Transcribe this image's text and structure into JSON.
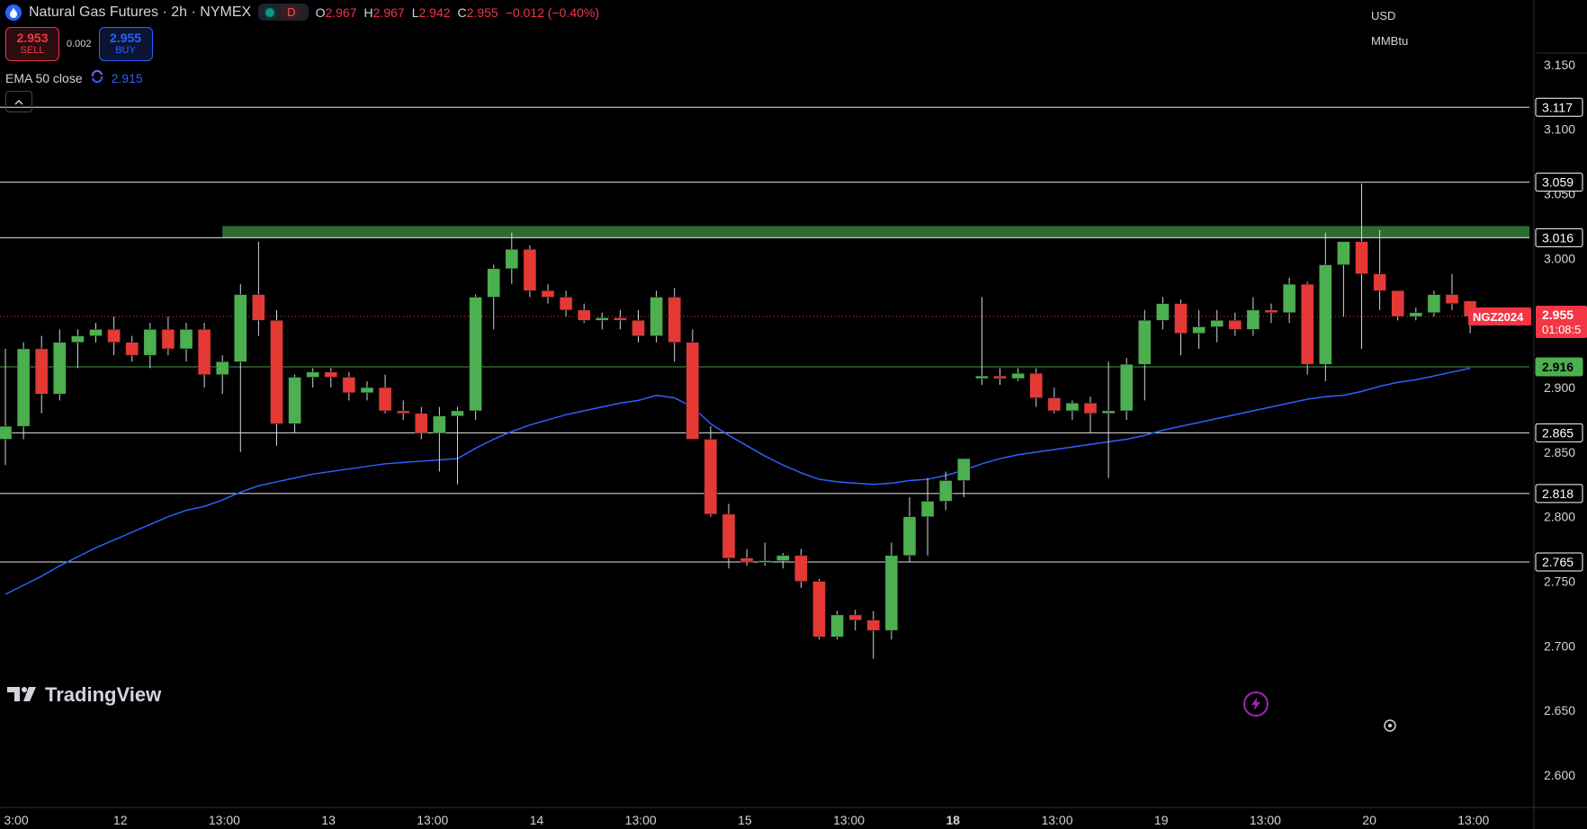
{
  "header": {
    "title": "Natural Gas Futures · 2h · NYMEX",
    "market_status_badge": "D",
    "ohlc": {
      "open_label": "O",
      "open": "2.967",
      "high_label": "H",
      "high": "2.967",
      "low_label": "L",
      "low": "2.942",
      "close_label": "C",
      "close": "2.955",
      "change": "−0.012 (−0.40%)"
    }
  },
  "trade": {
    "sell_price": "2.953",
    "sell_label": "SELL",
    "spread": "0.002",
    "buy_price": "2.955",
    "buy_label": "BUY"
  },
  "indicator": {
    "name": "EMA 50 close",
    "value": "2.915"
  },
  "axis": {
    "currency": "USD",
    "unit": "MMBtu"
  },
  "branding": {
    "logo": "TradingView"
  },
  "colors": {
    "up": "#4caf50",
    "down": "#e53935",
    "ema": "#2962ff",
    "resistance_zone": "#2e6b34",
    "price_line": "#f23645",
    "background": "#000000"
  },
  "chart_data": {
    "type": "candlestick",
    "symbol": "NGZ2024",
    "interval": "2h",
    "ylim": [
      2.575,
      3.2
    ],
    "y_ticks": [
      2.6,
      2.65,
      2.7,
      2.75,
      2.8,
      2.85,
      2.9,
      3.0,
      3.05,
      3.1,
      3.15
    ],
    "x_ticks": [
      "3:00",
      "12",
      "13:00",
      "13",
      "13:00",
      "14",
      "13:00",
      "15",
      "13:00",
      "18",
      "13:00",
      "19",
      "13:00",
      "20",
      "13:00"
    ],
    "x_ticks_bold": [
      9
    ],
    "horizontal_levels": [
      {
        "value": 3.117,
        "label": "3.117",
        "color": "#ffffff"
      },
      {
        "value": 3.059,
        "label": "3.059",
        "color": "#ffffff"
      },
      {
        "value": 3.016,
        "label": "3.016",
        "color": "#ffffff"
      },
      {
        "value": 2.865,
        "label": "2.865",
        "color": "#ffffff"
      },
      {
        "value": 2.818,
        "label": "2.818",
        "color": "#ffffff"
      },
      {
        "value": 2.765,
        "label": "2.765",
        "color": "#ffffff"
      },
      {
        "value": 2.916,
        "label": "2.916",
        "color": "#4caf50"
      }
    ],
    "resistance_zone": [
      3.016,
      3.025
    ],
    "last_price": {
      "value": 2.955,
      "label": "2.955",
      "countdown": "01:08:5",
      "symbol_label": "NGZ2024"
    },
    "candles": [
      [
        2.86,
        2.93,
        2.84,
        2.87
      ],
      [
        2.87,
        2.935,
        2.86,
        2.93
      ],
      [
        2.93,
        2.94,
        2.88,
        2.895
      ],
      [
        2.895,
        2.945,
        2.89,
        2.935
      ],
      [
        2.935,
        2.945,
        2.915,
        2.94
      ],
      [
        2.94,
        2.95,
        2.935,
        2.945
      ],
      [
        2.945,
        2.955,
        2.925,
        2.935
      ],
      [
        2.935,
        2.94,
        2.92,
        2.925
      ],
      [
        2.925,
        2.95,
        2.915,
        2.945
      ],
      [
        2.945,
        2.955,
        2.925,
        2.93
      ],
      [
        2.93,
        2.95,
        2.92,
        2.945
      ],
      [
        2.945,
        2.95,
        2.9,
        2.91
      ],
      [
        2.91,
        2.925,
        2.895,
        2.92
      ],
      [
        2.92,
        2.98,
        2.85,
        2.972
      ],
      [
        2.972,
        3.013,
        2.94,
        2.952
      ],
      [
        2.952,
        2.96,
        2.855,
        2.872
      ],
      [
        2.872,
        2.91,
        2.865,
        2.908
      ],
      [
        2.908,
        2.915,
        2.9,
        2.912
      ],
      [
        2.912,
        2.915,
        2.9,
        2.908
      ],
      [
        2.908,
        2.912,
        2.89,
        2.896
      ],
      [
        2.896,
        2.905,
        2.89,
        2.9
      ],
      [
        2.9,
        2.91,
        2.88,
        2.882
      ],
      [
        2.882,
        2.89,
        2.875,
        2.88
      ],
      [
        2.88,
        2.885,
        2.86,
        2.865
      ],
      [
        2.865,
        2.885,
        2.835,
        2.878
      ],
      [
        2.878,
        2.885,
        2.825,
        2.882
      ],
      [
        2.882,
        2.972,
        2.875,
        2.97
      ],
      [
        2.97,
        2.995,
        2.945,
        2.992
      ],
      [
        2.992,
        3.02,
        2.98,
        3.007
      ],
      [
        3.007,
        3.01,
        2.97,
        2.975
      ],
      [
        2.975,
        2.98,
        2.965,
        2.97
      ],
      [
        2.97,
        2.975,
        2.955,
        2.96
      ],
      [
        2.96,
        2.965,
        2.95,
        2.952
      ],
      [
        2.952,
        2.958,
        2.945,
        2.954
      ],
      [
        2.954,
        2.96,
        2.945,
        2.952
      ],
      [
        2.952,
        2.96,
        2.935,
        2.94
      ],
      [
        2.94,
        2.975,
        2.935,
        2.97
      ],
      [
        2.97,
        2.977,
        2.92,
        2.935
      ],
      [
        2.935,
        2.945,
        2.86,
        2.86
      ],
      [
        2.86,
        2.87,
        2.8,
        2.802
      ],
      [
        2.802,
        2.81,
        2.76,
        2.768
      ],
      [
        2.768,
        2.775,
        2.762,
        2.765
      ],
      [
        2.765,
        2.78,
        2.762,
        2.766
      ],
      [
        2.766,
        2.772,
        2.76,
        2.77
      ],
      [
        2.77,
        2.775,
        2.745,
        2.75
      ],
      [
        2.75,
        2.752,
        2.705,
        2.707
      ],
      [
        2.707,
        2.727,
        2.705,
        2.724
      ],
      [
        2.724,
        2.728,
        2.712,
        2.72
      ],
      [
        2.72,
        2.727,
        2.69,
        2.712
      ],
      [
        2.712,
        2.78,
        2.705,
        2.77
      ],
      [
        2.77,
        2.815,
        2.765,
        2.8
      ],
      [
        2.8,
        2.83,
        2.77,
        2.812
      ],
      [
        2.812,
        2.835,
        2.805,
        2.828
      ],
      [
        2.828,
        2.84,
        2.815,
        2.845
      ],
      [
        2.907,
        2.97,
        2.902,
        2.909
      ],
      [
        2.909,
        2.915,
        2.902,
        2.907
      ],
      [
        2.907,
        2.915,
        2.905,
        2.911
      ],
      [
        2.911,
        2.915,
        2.885,
        2.892
      ],
      [
        2.892,
        2.9,
        2.88,
        2.882
      ],
      [
        2.882,
        2.89,
        2.875,
        2.888
      ],
      [
        2.888,
        2.893,
        2.865,
        2.88
      ],
      [
        2.88,
        2.92,
        2.83,
        2.882
      ],
      [
        2.882,
        2.923,
        2.875,
        2.918
      ],
      [
        2.918,
        2.96,
        2.89,
        2.952
      ],
      [
        2.952,
        2.97,
        2.945,
        2.965
      ],
      [
        2.965,
        2.968,
        2.925,
        2.942
      ],
      [
        2.942,
        2.96,
        2.93,
        2.947
      ],
      [
        2.947,
        2.96,
        2.935,
        2.952
      ],
      [
        2.952,
        2.958,
        2.94,
        2.945
      ],
      [
        2.945,
        2.97,
        2.94,
        2.96
      ],
      [
        2.96,
        2.965,
        2.95,
        2.958
      ],
      [
        2.958,
        2.985,
        2.95,
        2.98
      ],
      [
        2.98,
        2.982,
        2.91,
        2.918
      ],
      [
        2.918,
        3.02,
        2.905,
        2.995
      ],
      [
        2.995,
        3.012,
        2.955,
        3.013
      ],
      [
        3.013,
        3.058,
        2.93,
        2.988
      ],
      [
        2.988,
        3.022,
        2.96,
        2.975
      ],
      [
        2.975,
        2.975,
        2.952,
        2.955
      ],
      [
        2.955,
        2.962,
        2.952,
        2.958
      ],
      [
        2.958,
        2.975,
        2.955,
        2.972
      ],
      [
        2.972,
        2.988,
        2.96,
        2.965
      ],
      [
        2.967,
        2.967,
        2.942,
        2.955
      ]
    ],
    "ema_50": [
      2.74,
      2.747,
      2.754,
      2.762,
      2.769,
      2.776,
      2.782,
      2.788,
      2.794,
      2.8,
      2.805,
      2.808,
      2.813,
      2.819,
      2.824,
      2.827,
      2.83,
      2.833,
      2.835,
      2.837,
      2.839,
      2.841,
      2.842,
      2.843,
      2.844,
      2.845,
      2.853,
      2.86,
      2.866,
      2.871,
      2.875,
      2.879,
      2.882,
      2.885,
      2.888,
      2.89,
      2.894,
      2.892,
      2.885,
      2.872,
      2.863,
      2.855,
      2.847,
      2.84,
      2.834,
      2.829,
      2.827,
      2.826,
      2.825,
      2.826,
      2.828,
      2.829,
      2.832,
      2.836,
      2.841,
      2.845,
      2.848,
      2.85,
      2.852,
      2.854,
      2.856,
      2.858,
      2.86,
      2.863,
      2.867,
      2.87,
      2.873,
      2.876,
      2.879,
      2.882,
      2.885,
      2.888,
      2.891,
      2.893,
      2.894,
      2.897,
      2.901,
      2.904,
      2.906,
      2.909,
      2.912,
      2.915
    ]
  }
}
